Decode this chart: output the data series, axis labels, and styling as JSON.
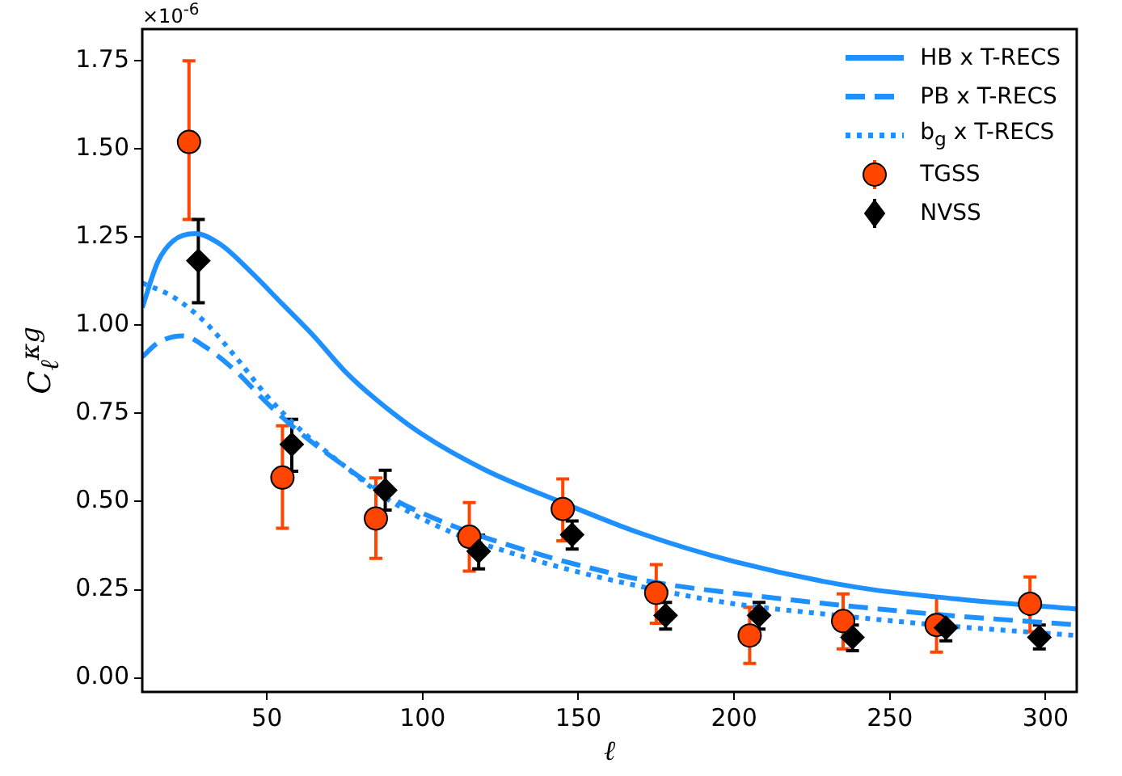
{
  "chart_data": {
    "type": "line",
    "xlabel": "ℓ",
    "ylabel": "C$_{ℓ}$$^{κg}$",
    "annotations": [
      "×10$^{-6}$"
    ],
    "xlim": [
      10,
      310
    ],
    "xticks": [
      50,
      100,
      150,
      200,
      250,
      300
    ],
    "ylim": [
      -0.04,
      1.84
    ],
    "yticks": [
      {
        "value": 0,
        "label": "0.00"
      },
      {
        "value": 0.25,
        "label": "0.25"
      },
      {
        "value": 0.5,
        "label": "0.50"
      },
      {
        "value": 0.75,
        "label": "0.75"
      },
      {
        "value": 1,
        "label": "1.00"
      },
      {
        "value": 1.25,
        "label": "1.25"
      },
      {
        "value": 1.5,
        "label": "1.50"
      },
      {
        "value": 1.75,
        "label": "1.75"
      }
    ],
    "grid": false,
    "legend": "top right",
    "series": [
      {
        "name": "HB x T-RECS",
        "line_style": "solid",
        "marker": "none",
        "color": "#1e90ff",
        "x": [
          10,
          15,
          20,
          27,
          35,
          45,
          55,
          65,
          75,
          85,
          100,
          120,
          144,
          170,
          200,
          240,
          270,
          310
        ],
        "values": [
          1.05,
          1.18,
          1.24,
          1.26,
          1.23,
          1.15,
          1.06,
          0.97,
          0.87,
          0.79,
          0.69,
          0.59,
          0.5,
          0.41,
          0.33,
          0.256,
          0.225,
          0.195
        ]
      },
      {
        "name": "PB x T-RECS",
        "line_style": "dashed",
        "marker": "none",
        "color": "#1e90ff",
        "x": [
          10,
          15,
          23,
          30,
          40,
          50,
          60,
          75,
          90,
          110,
          130,
          150,
          175,
          200,
          230,
          265,
          310
        ],
        "values": [
          0.91,
          0.95,
          0.97,
          0.94,
          0.87,
          0.78,
          0.7,
          0.6,
          0.51,
          0.43,
          0.37,
          0.32,
          0.27,
          0.24,
          0.21,
          0.18,
          0.15
        ]
      },
      {
        "name": "b$_{g}$ x T-RECS",
        "line_style": "dotted",
        "marker": "none",
        "color": "#1e90ff",
        "x": [
          10,
          20,
          30,
          40,
          50,
          60,
          75,
          90,
          110,
          130,
          150,
          175,
          200,
          230,
          265,
          310
        ],
        "values": [
          1.12,
          1.08,
          1.01,
          0.91,
          0.8,
          0.71,
          0.6,
          0.5,
          0.41,
          0.35,
          0.3,
          0.25,
          0.21,
          0.18,
          0.15,
          0.12
        ]
      },
      {
        "name": "TGSS",
        "type": "scatter",
        "marker": "circle",
        "color": "#ff4500",
        "x": [
          25,
          55,
          85,
          115,
          145,
          175,
          205,
          235,
          265,
          295
        ],
        "values": [
          1.52,
          0.568,
          0.452,
          0.4,
          0.479,
          0.241,
          0.12,
          0.161,
          0.15,
          0.21
        ],
        "errors": [
          [
            1.3,
            1.75
          ],
          [
            0.424,
            0.715
          ],
          [
            0.339,
            0.567
          ],
          [
            0.303,
            0.497
          ],
          [
            0.389,
            0.564
          ],
          [
            0.155,
            0.321
          ],
          [
            0.041,
            0.2
          ],
          [
            0.082,
            0.238
          ],
          [
            0.073,
            0.229
          ],
          [
            0.13,
            0.286
          ]
        ]
      },
      {
        "name": "NVSS",
        "type": "scatter",
        "marker": "diamond",
        "color": "#000000",
        "x": [
          28,
          58,
          88,
          118,
          148,
          178,
          208,
          238,
          268,
          298
        ],
        "values": [
          1.183,
          0.662,
          0.532,
          0.359,
          0.406,
          0.177,
          0.177,
          0.115,
          0.142,
          0.115
        ],
        "errors": [
          [
            1.064,
            1.3
          ],
          [
            0.586,
            0.733
          ],
          [
            0.476,
            0.589
          ],
          [
            0.309,
            0.405
          ],
          [
            0.365,
            0.445
          ],
          [
            0.138,
            0.214
          ],
          [
            0.138,
            0.214
          ],
          [
            0.077,
            0.15
          ],
          [
            0.105,
            0.177
          ],
          [
            0.082,
            0.15
          ]
        ]
      }
    ]
  }
}
